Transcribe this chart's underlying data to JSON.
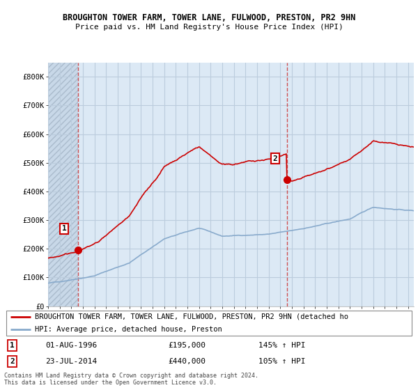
{
  "title1": "BROUGHTON TOWER FARM, TOWER LANE, FULWOOD, PRESTON, PR2 9HN",
  "title2": "Price paid vs. HM Land Registry's House Price Index (HPI)",
  "xlim": [
    1994.0,
    2025.5
  ],
  "ylim": [
    0,
    850000
  ],
  "yticks": [
    0,
    100000,
    200000,
    300000,
    400000,
    500000,
    600000,
    700000,
    800000
  ],
  "ytick_labels": [
    "£0",
    "£100K",
    "£200K",
    "£300K",
    "£400K",
    "£500K",
    "£600K",
    "£700K",
    "£800K"
  ],
  "property_color": "#cc0000",
  "hpi_color": "#88aacc",
  "marker1_date": 1996.58,
  "marker1_price": 195000,
  "marker2_date": 2014.55,
  "marker2_price": 440000,
  "vline1_x": 1996.58,
  "vline2_x": 2014.55,
  "legend_property": "BROUGHTON TOWER FARM, TOWER LANE, FULWOOD, PRESTON, PR2 9HN (detached ho",
  "legend_hpi": "HPI: Average price, detached house, Preston",
  "note1_label": "1",
  "note1_date": "01-AUG-1996",
  "note1_price": "£195,000",
  "note1_hpi": "145% ↑ HPI",
  "note2_label": "2",
  "note2_date": "23-JUL-2014",
  "note2_price": "£440,000",
  "note2_hpi": "105% ↑ HPI",
  "footer": "Contains HM Land Registry data © Crown copyright and database right 2024.\nThis data is licensed under the Open Government Licence v3.0.",
  "bg_color": "#dce9f5",
  "grid_color": "#bbccdd",
  "hatch_bg": "#c8d8e8"
}
